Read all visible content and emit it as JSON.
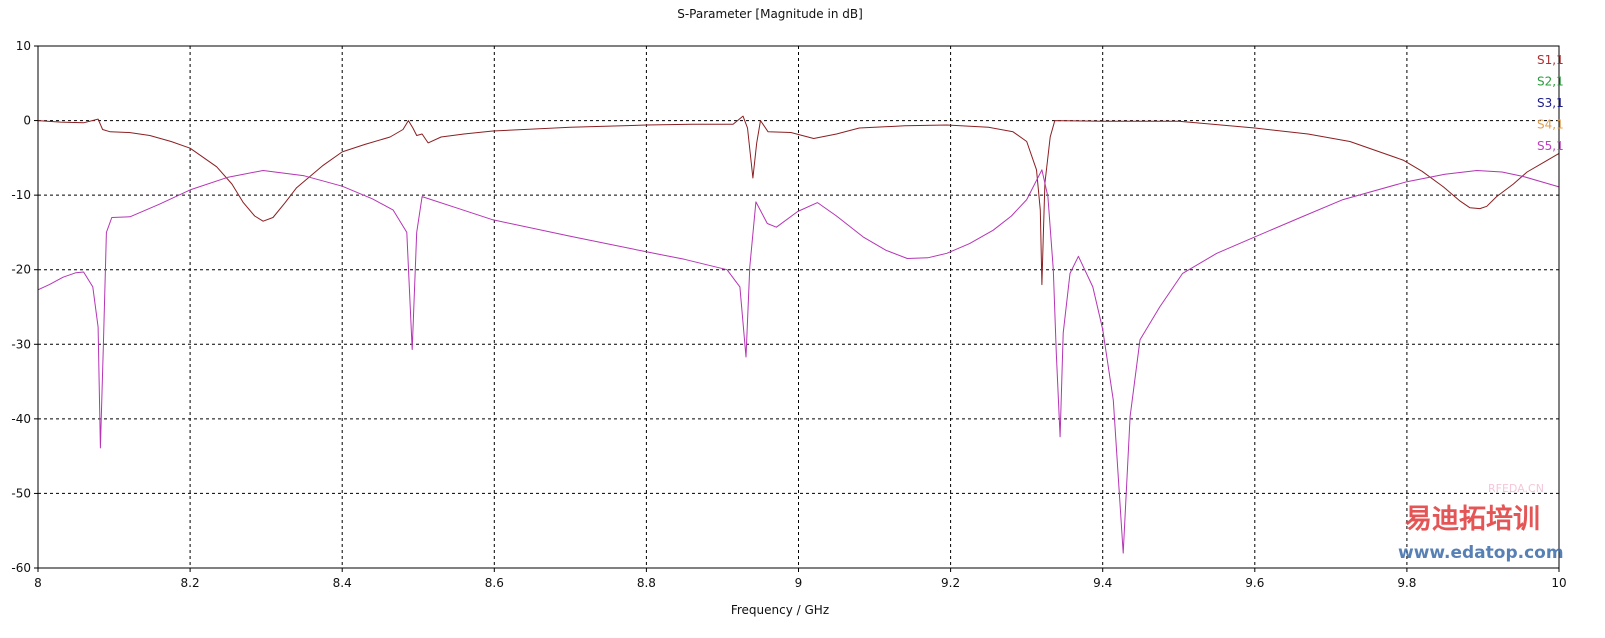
{
  "chart_data": {
    "type": "line",
    "title": "S-Parameter [Magnitude in dB]",
    "xlabel": "Frequency / GHz",
    "ylabel": "",
    "xlim": [
      8,
      10
    ],
    "ylim": [
      -60,
      10
    ],
    "grid": true,
    "legend_position": "right",
    "x_ticks": [
      "8",
      "8.2",
      "8.4",
      "8.6",
      "8.8",
      "9",
      "9.2",
      "9.4",
      "9.6",
      "9.8",
      "10"
    ],
    "y_ticks": [
      "10",
      "0",
      "-10",
      "-20",
      "-30",
      "-40",
      "-50",
      "-60"
    ],
    "legend": [
      {
        "name": "S1,1",
        "color": "#b03030"
      },
      {
        "name": "S2,1",
        "color": "#2e9b3e"
      },
      {
        "name": "S3,1",
        "color": "#1c1c8a"
      },
      {
        "name": "S4,1",
        "color": "#e0a050"
      },
      {
        "name": "S5,1",
        "color": "#c040c0"
      }
    ],
    "series": [
      {
        "name": "S1,1",
        "color": "#8b1f22",
        "x": [
          8.0,
          8.03,
          8.06,
          8.079,
          8.085,
          8.095,
          8.12,
          8.147,
          8.175,
          8.2,
          8.235,
          8.255,
          8.27,
          8.285,
          8.296,
          8.309,
          8.325,
          8.34,
          8.375,
          8.4,
          8.43,
          8.463,
          8.48,
          8.487,
          8.493,
          8.498,
          8.505,
          8.513,
          8.53,
          8.56,
          8.598,
          8.7,
          8.8,
          8.86,
          8.914,
          8.927,
          8.933,
          8.94,
          8.945,
          8.95,
          8.96,
          8.99,
          9.02,
          9.05,
          9.08,
          9.14,
          9.195,
          9.25,
          9.282,
          9.3,
          9.313,
          9.318,
          9.32,
          9.322,
          9.324,
          9.331,
          9.337,
          9.4,
          9.5,
          9.6,
          9.67,
          9.725,
          9.795,
          9.82,
          9.848,
          9.87,
          9.883,
          9.896,
          9.905,
          9.918,
          9.94,
          9.958,
          9.98,
          10.0
        ],
        "y": [
          0,
          -0.2,
          -0.3,
          0.2,
          -1.2,
          -1.5,
          -1.6,
          -2.0,
          -2.8,
          -3.7,
          -6.2,
          -8.5,
          -11,
          -12.8,
          -13.5,
          -13,
          -11,
          -9,
          -6,
          -4.2,
          -3.2,
          -2.2,
          -1.2,
          0,
          -1.0,
          -2.0,
          -1.8,
          -3.0,
          -2.2,
          -1.8,
          -1.4,
          -0.9,
          -0.6,
          -0.5,
          -0.5,
          0.6,
          -1.0,
          -7.7,
          -3.0,
          0,
          -1.5,
          -1.6,
          -2.4,
          -1.8,
          -1.0,
          -0.7,
          -0.6,
          -0.9,
          -1.5,
          -2.8,
          -6.6,
          -12,
          -22,
          -15,
          -8.4,
          -2.2,
          0,
          -0.1,
          -0.1,
          -1.0,
          -1.8,
          -2.8,
          -5.3,
          -6.8,
          -8.9,
          -10.8,
          -11.7,
          -11.8,
          -11.5,
          -10.2,
          -8.5,
          -6.9,
          -5.6,
          -4.4
        ]
      },
      {
        "name": "S5,1",
        "color": "#b535b5",
        "x": [
          8.0,
          8.015,
          8.033,
          8.05,
          8.06,
          8.072,
          8.079,
          8.082,
          8.086,
          8.09,
          8.097,
          8.121,
          8.16,
          8.2,
          8.25,
          8.296,
          8.35,
          8.4,
          8.44,
          8.467,
          8.485,
          8.492,
          8.498,
          8.505,
          8.55,
          8.598,
          8.7,
          8.8,
          8.85,
          8.906,
          8.923,
          8.931,
          8.936,
          8.944,
          8.959,
          8.971,
          8.999,
          9.025,
          9.05,
          9.085,
          9.115,
          9.143,
          9.17,
          9.195,
          9.225,
          9.256,
          9.28,
          9.3,
          9.32,
          9.328,
          9.335,
          9.339,
          9.344,
          9.348,
          9.357,
          9.368,
          9.387,
          9.4,
          9.414,
          9.427,
          9.436,
          9.449,
          9.475,
          9.505,
          9.55,
          9.6,
          9.66,
          9.716,
          9.8,
          9.85,
          9.892,
          9.925,
          9.953,
          10.0
        ],
        "y": [
          -22.7,
          -22,
          -21,
          -20.4,
          -20.3,
          -22.3,
          -27.7,
          -43.9,
          -30,
          -15,
          -13,
          -12.9,
          -11.2,
          -9.3,
          -7.6,
          -6.7,
          -7.4,
          -8.8,
          -10.5,
          -12,
          -15,
          -30.7,
          -15,
          -10.2,
          -11.7,
          -13.3,
          -15.5,
          -17.6,
          -18.6,
          -20,
          -22.3,
          -31.7,
          -19.6,
          -10.9,
          -13.8,
          -14.3,
          -12.2,
          -11,
          -12.8,
          -15.6,
          -17.4,
          -18.5,
          -18.4,
          -17.8,
          -16.5,
          -14.7,
          -12.8,
          -10.6,
          -6.6,
          -10.2,
          -20,
          -31.2,
          -42.4,
          -28.5,
          -20.5,
          -18.2,
          -22.3,
          -28,
          -37.5,
          -58,
          -39.7,
          -29.4,
          -25,
          -20.5,
          -17.8,
          -15.6,
          -13,
          -10.6,
          -8.2,
          -7.2,
          -6.7,
          -6.9,
          -7.5,
          -8.9
        ]
      }
    ]
  },
  "watermark": {
    "brand_cn": "易迪拓培训",
    "url": "www.edatop.com",
    "site": "RFEDA.CN"
  }
}
